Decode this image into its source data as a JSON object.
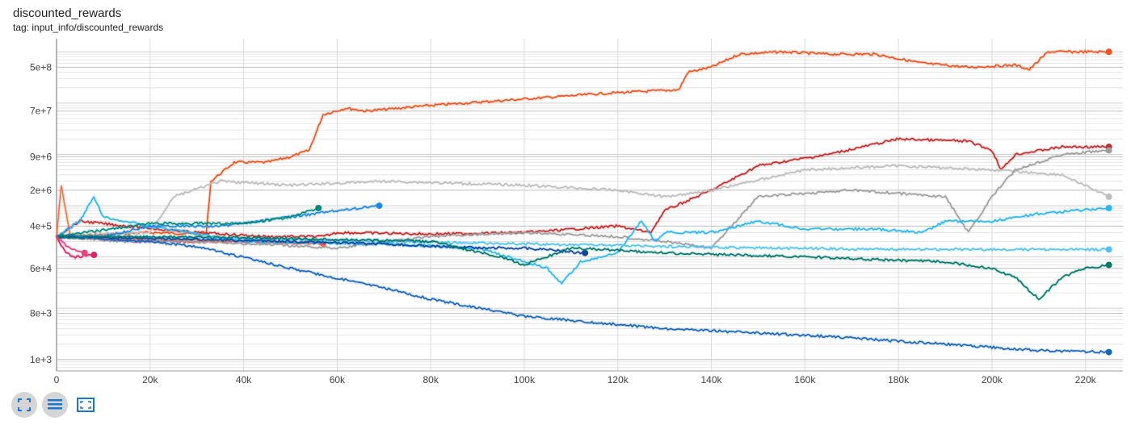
{
  "header": {
    "title": "discounted_rewards",
    "tag": "tag: input_info/discounted_rewards"
  },
  "toolbar": {
    "buttons": [
      {
        "icon": "fit-domain-icon",
        "active": true
      },
      {
        "icon": "log-scale-icon",
        "active": true
      },
      {
        "icon": "expand-chart-icon",
        "active": false
      }
    ],
    "icon_color": "#1976d2"
  },
  "chart_data": {
    "type": "line",
    "title": "discounted_rewards",
    "subtitle": "tag: input_info/discounted_rewards",
    "xlabel": "",
    "ylabel": "",
    "x_ticks": [
      "0",
      "20k",
      "40k",
      "60k",
      "80k",
      "100k",
      "120k",
      "140k",
      "160k",
      "180k",
      "200k",
      "220k"
    ],
    "x_tick_values": [
      0,
      20000,
      40000,
      60000,
      80000,
      100000,
      120000,
      140000,
      160000,
      180000,
      200000,
      220000
    ],
    "y_ticks": [
      "1e+3",
      "8e+3",
      "6e+4",
      "4e+5",
      "2e+6",
      "9e+6",
      "7e+7",
      "5e+8"
    ],
    "y_tick_values": [
      1000,
      8000,
      60000,
      400000,
      2000000,
      9000000,
      70000000,
      500000000
    ],
    "y_scale": "log",
    "xlim": [
      0,
      228000
    ],
    "ylim": [
      600,
      1800000000
    ],
    "grid": true,
    "series": [
      {
        "color": "#f4511e",
        "points": [
          [
            0,
            250000
          ],
          [
            20000,
            300000
          ],
          [
            32000,
            280000
          ],
          [
            33000,
            3000000
          ],
          [
            38000,
            7000000
          ],
          [
            45000,
            7000000
          ],
          [
            50000,
            9000000
          ],
          [
            54000,
            12000000
          ],
          [
            57000,
            60000000
          ],
          [
            62000,
            80000000
          ],
          [
            66000,
            70000000
          ],
          [
            80000,
            90000000
          ],
          [
            100000,
            120000000
          ],
          [
            115000,
            150000000
          ],
          [
            120000,
            160000000
          ],
          [
            132000,
            180000000
          ],
          [
            133000,
            180000000
          ],
          [
            135000,
            400000000
          ],
          [
            140000,
            500000000
          ],
          [
            146000,
            900000000
          ],
          [
            155000,
            1000000000
          ],
          [
            165000,
            900000000
          ],
          [
            175000,
            900000000
          ],
          [
            185000,
            600000000
          ],
          [
            195000,
            500000000
          ],
          [
            205000,
            550000000
          ],
          [
            208000,
            450000000
          ],
          [
            212000,
            1000000000
          ],
          [
            225000,
            1000000000
          ]
        ]
      },
      {
        "color": "#ff7043",
        "points": [
          [
            0,
            250000
          ],
          [
            1000,
            2500000
          ],
          [
            3000,
            250000
          ],
          [
            20000,
            220000
          ],
          [
            40000,
            200000
          ],
          [
            57000,
            180000
          ]
        ]
      },
      {
        "color": "#c62828",
        "points": [
          [
            0,
            250000
          ],
          [
            5000,
            500000
          ],
          [
            15000,
            400000
          ],
          [
            30000,
            300000
          ],
          [
            45000,
            250000
          ],
          [
            57000,
            250000
          ],
          [
            60000,
            300000
          ],
          [
            80000,
            280000
          ],
          [
            100000,
            300000
          ],
          [
            120000,
            400000
          ],
          [
            127000,
            300000
          ],
          [
            130000,
            800000
          ],
          [
            140000,
            2000000
          ],
          [
            150000,
            6000000
          ],
          [
            165000,
            10000000
          ],
          [
            180000,
            20000000
          ],
          [
            195000,
            18000000
          ],
          [
            200000,
            12000000
          ],
          [
            202000,
            5000000
          ],
          [
            205000,
            10000000
          ],
          [
            215000,
            14000000
          ],
          [
            225000,
            14000000
          ]
        ]
      },
      {
        "color": "#ef5350",
        "points": [
          [
            0,
            250000
          ],
          [
            10000,
            220000
          ],
          [
            25000,
            200000
          ],
          [
            40000,
            200000
          ],
          [
            57000,
            190000
          ]
        ]
      },
      {
        "color": "#bdbdbd",
        "points": [
          [
            0,
            250000
          ],
          [
            20000,
            300000
          ],
          [
            25000,
            1500000
          ],
          [
            35000,
            3000000
          ],
          [
            50000,
            2500000
          ],
          [
            70000,
            3000000
          ],
          [
            100000,
            2500000
          ],
          [
            120000,
            2000000
          ],
          [
            130000,
            1500000
          ],
          [
            140000,
            2000000
          ],
          [
            160000,
            5000000
          ],
          [
            180000,
            6000000
          ],
          [
            200000,
            5000000
          ],
          [
            215000,
            4000000
          ],
          [
            225000,
            1500000
          ]
        ]
      },
      {
        "color": "#9e9e9e",
        "points": [
          [
            0,
            250000
          ],
          [
            15000,
            200000
          ],
          [
            30000,
            200000
          ],
          [
            60000,
            150000
          ],
          [
            80000,
            250000
          ],
          [
            100000,
            300000
          ],
          [
            120000,
            250000
          ],
          [
            130000,
            200000
          ],
          [
            140000,
            150000
          ],
          [
            150000,
            1500000
          ],
          [
            170000,
            2000000
          ],
          [
            190000,
            1500000
          ],
          [
            195000,
            300000
          ],
          [
            200000,
            1500000
          ],
          [
            205000,
            5000000
          ],
          [
            215000,
            10000000
          ],
          [
            225000,
            12000000
          ]
        ]
      },
      {
        "color": "#29b6f6",
        "points": [
          [
            0,
            250000
          ],
          [
            5000,
            500000
          ],
          [
            8000,
            1500000
          ],
          [
            10000,
            600000
          ],
          [
            20000,
            400000
          ],
          [
            40000,
            200000
          ],
          [
            70000,
            180000
          ],
          [
            90000,
            150000
          ],
          [
            105000,
            60000
          ],
          [
            108000,
            30000
          ],
          [
            112000,
            80000
          ],
          [
            120000,
            120000
          ],
          [
            125000,
            500000
          ],
          [
            128000,
            200000
          ],
          [
            130000,
            300000
          ],
          [
            140000,
            300000
          ],
          [
            150000,
            500000
          ],
          [
            160000,
            350000
          ],
          [
            175000,
            350000
          ],
          [
            185000,
            300000
          ],
          [
            190000,
            500000
          ],
          [
            200000,
            500000
          ],
          [
            210000,
            700000
          ],
          [
            225000,
            900000
          ]
        ]
      },
      {
        "color": "#4fc3f7",
        "points": [
          [
            0,
            250000
          ],
          [
            50000,
            220000
          ],
          [
            100000,
            180000
          ],
          [
            150000,
            150000
          ],
          [
            180000,
            140000
          ],
          [
            225000,
            140000
          ]
        ]
      },
      {
        "color": "#1565c0",
        "points": [
          [
            0,
            250000
          ],
          [
            20000,
            200000
          ],
          [
            30000,
            160000
          ],
          [
            50000,
            60000
          ],
          [
            70000,
            25000
          ],
          [
            80000,
            15000
          ],
          [
            100000,
            7000
          ],
          [
            130000,
            4000
          ],
          [
            160000,
            3000
          ],
          [
            190000,
            2000
          ],
          [
            210000,
            1500
          ],
          [
            225000,
            1400
          ]
        ]
      },
      {
        "color": "#1e88e5",
        "points": [
          [
            0,
            250000
          ],
          [
            10000,
            250000
          ],
          [
            20000,
            400000
          ],
          [
            35000,
            400000
          ],
          [
            50000,
            600000
          ],
          [
            60000,
            800000
          ],
          [
            69000,
            1000000
          ]
        ]
      },
      {
        "color": "#0d47a1",
        "points": [
          [
            0,
            250000
          ],
          [
            30000,
            220000
          ],
          [
            50000,
            200000
          ],
          [
            70000,
            180000
          ],
          [
            90000,
            150000
          ],
          [
            100000,
            150000
          ],
          [
            113000,
            120000
          ]
        ]
      },
      {
        "color": "#00897b",
        "points": [
          [
            0,
            250000
          ],
          [
            20000,
            450000
          ],
          [
            40000,
            450000
          ],
          [
            50000,
            600000
          ],
          [
            56000,
            900000
          ]
        ]
      },
      {
        "color": "#00796b",
        "points": [
          [
            0,
            250000
          ],
          [
            40000,
            240000
          ],
          [
            80000,
            200000
          ],
          [
            95000,
            100000
          ],
          [
            100000,
            70000
          ],
          [
            110000,
            150000
          ],
          [
            130000,
            120000
          ],
          [
            160000,
            100000
          ],
          [
            190000,
            80000
          ],
          [
            200000,
            60000
          ],
          [
            205000,
            40000
          ],
          [
            210000,
            15000
          ],
          [
            215000,
            40000
          ],
          [
            220000,
            60000
          ],
          [
            225000,
            70000
          ]
        ]
      },
      {
        "color": "#e91e63",
        "points": [
          [
            0,
            250000
          ],
          [
            2000,
            120000
          ],
          [
            4000,
            100000
          ],
          [
            8000,
            110000
          ]
        ]
      },
      {
        "color": "#ec407a",
        "points": [
          [
            0,
            250000
          ],
          [
            3000,
            140000
          ],
          [
            6000,
            120000
          ]
        ]
      }
    ]
  }
}
